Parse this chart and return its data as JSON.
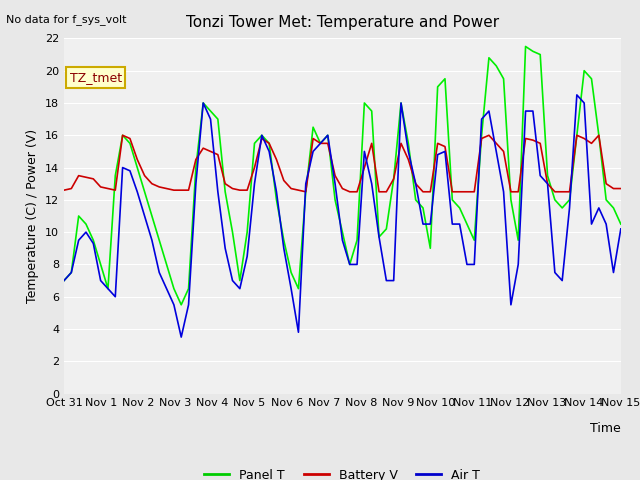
{
  "title": "Tonzi Tower Met: Temperature and Power",
  "ylabel": "Temperature (C) / Power (V)",
  "xlabel": "Time",
  "top_label": "No data for f_sys_volt",
  "annotation": "TZ_tmet",
  "ylim": [
    0,
    22
  ],
  "yticks": [
    0,
    2,
    4,
    6,
    8,
    10,
    12,
    14,
    16,
    18,
    20,
    22
  ],
  "xtick_labels": [
    "Oct 31",
    "Nov 1",
    "Nov 2",
    "Nov 3",
    "Nov 4",
    "Nov 5",
    "Nov 6",
    "Nov 7",
    "Nov 8",
    "Nov 9",
    "Nov 10",
    "Nov 11",
    "Nov 12",
    "Nov 13",
    "Nov 14",
    "Nov 15"
  ],
  "legend_entries": [
    "Panel T",
    "Battery V",
    "Air T"
  ],
  "legend_colors": [
    "#00cc00",
    "#cc0000",
    "#0000cc"
  ],
  "bg_color": "#e8e8e8",
  "plot_bg_color": "#f0f0f0",
  "grid_color": "#ffffff",
  "panel_T_color": "#00ee00",
  "battery_V_color": "#cc0000",
  "air_T_color": "#0000dd",
  "num_days": 15,
  "panel_T": [
    7.0,
    7.5,
    11.0,
    10.5,
    9.5,
    8.0,
    6.5,
    13.5,
    16.0,
    15.5,
    14.0,
    12.5,
    11.0,
    9.5,
    8.0,
    6.5,
    5.5,
    6.5,
    14.0,
    18.0,
    17.5,
    17.0,
    12.5,
    10.0,
    7.0,
    10.0,
    15.5,
    16.0,
    15.5,
    12.0,
    9.5,
    7.5,
    6.5,
    12.5,
    16.5,
    15.5,
    16.0,
    12.0,
    10.0,
    8.0,
    9.5,
    18.0,
    17.5,
    9.7,
    10.2,
    13.3,
    18.0,
    15.5,
    12.0,
    11.5,
    9.0,
    19.0,
    19.5,
    12.0,
    11.5,
    10.5,
    9.5,
    16.0,
    20.8,
    20.3,
    19.5,
    12.0,
    9.5,
    21.5,
    21.2,
    21.0,
    13.5,
    12.0,
    11.5,
    12.0,
    16.0,
    20.0,
    19.5,
    16.0,
    12.0,
    11.5,
    10.5
  ],
  "battery_V": [
    12.6,
    12.7,
    13.5,
    13.4,
    13.3,
    12.8,
    12.7,
    12.6,
    16.0,
    15.8,
    14.5,
    13.5,
    13.0,
    12.8,
    12.7,
    12.6,
    12.6,
    12.6,
    14.5,
    15.2,
    15.0,
    14.8,
    13.0,
    12.7,
    12.6,
    12.6,
    14.0,
    15.8,
    15.5,
    14.5,
    13.2,
    12.7,
    12.6,
    12.5,
    15.8,
    15.5,
    15.5,
    13.5,
    12.7,
    12.5,
    12.5,
    14.0,
    15.5,
    12.5,
    12.5,
    13.3,
    15.5,
    14.5,
    13.0,
    12.5,
    12.5,
    15.5,
    15.3,
    12.5,
    12.5,
    12.5,
    12.5,
    15.8,
    16.0,
    15.5,
    15.0,
    12.5,
    12.5,
    15.8,
    15.7,
    15.5,
    13.0,
    12.5,
    12.5,
    12.5,
    16.0,
    15.8,
    15.5,
    16.0,
    13.0,
    12.7,
    12.7
  ],
  "air_T": [
    7.0,
    7.5,
    9.5,
    10.0,
    9.3,
    7.0,
    6.5,
    6.0,
    14.0,
    13.8,
    12.5,
    11.0,
    9.5,
    7.5,
    6.5,
    5.5,
    3.5,
    5.5,
    13.0,
    18.0,
    17.0,
    12.5,
    9.0,
    7.0,
    6.5,
    8.5,
    13.0,
    16.0,
    15.0,
    12.5,
    9.0,
    6.5,
    3.8,
    13.0,
    15.0,
    15.5,
    16.0,
    13.0,
    9.5,
    8.0,
    8.0,
    15.0,
    13.0,
    9.7,
    7.0,
    7.0,
    18.0,
    15.0,
    13.0,
    10.5,
    10.5,
    14.8,
    15.0,
    10.5,
    10.5,
    8.0,
    8.0,
    17.0,
    17.5,
    15.0,
    12.5,
    5.5,
    8.0,
    17.5,
    17.5,
    13.5,
    13.0,
    7.5,
    7.0,
    11.5,
    18.5,
    18.0,
    10.5,
    11.5,
    10.5,
    7.5,
    10.2
  ]
}
